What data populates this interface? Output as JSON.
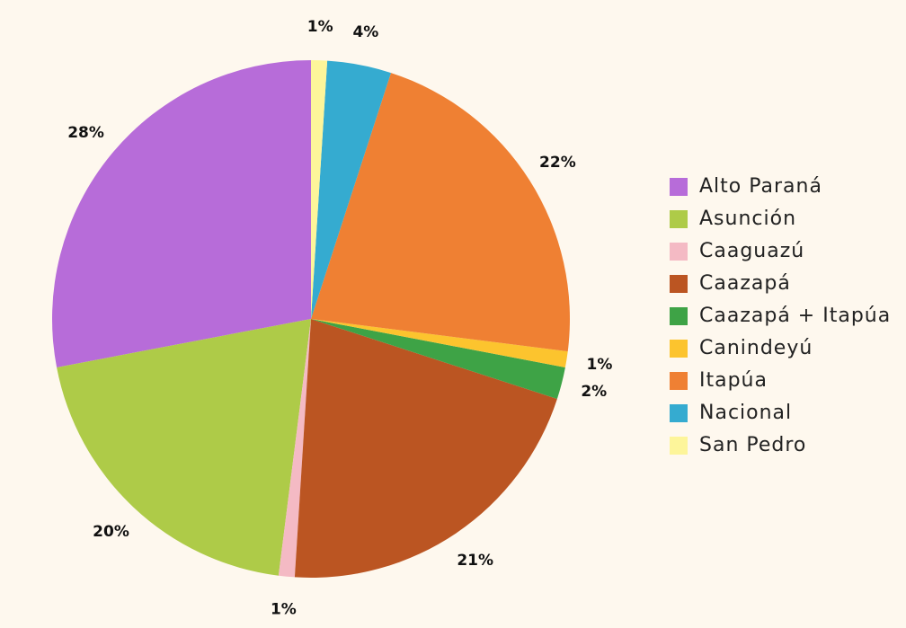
{
  "chart_data": {
    "type": "pie",
    "categories": [
      "Alto Paraná",
      "Asunción",
      "Caaguazú",
      "Caazapá",
      "Caazapá + Itapúa",
      "Canindeyú",
      "Itapúa",
      "Nacional",
      "San Pedro"
    ],
    "values": [
      28,
      20,
      1,
      21,
      2,
      1,
      22,
      4,
      1
    ],
    "value_labels": [
      "28%",
      "20%",
      "1%",
      "21%",
      "2%",
      "1%",
      "22%",
      "4%",
      "1%"
    ],
    "colors": [
      "#b76cd9",
      "#aecb48",
      "#f4bac4",
      "#bb5522",
      "#3ea346",
      "#fcc42e",
      "#ef8033",
      "#35abd0",
      "#fdf59a"
    ],
    "legend": "right"
  }
}
